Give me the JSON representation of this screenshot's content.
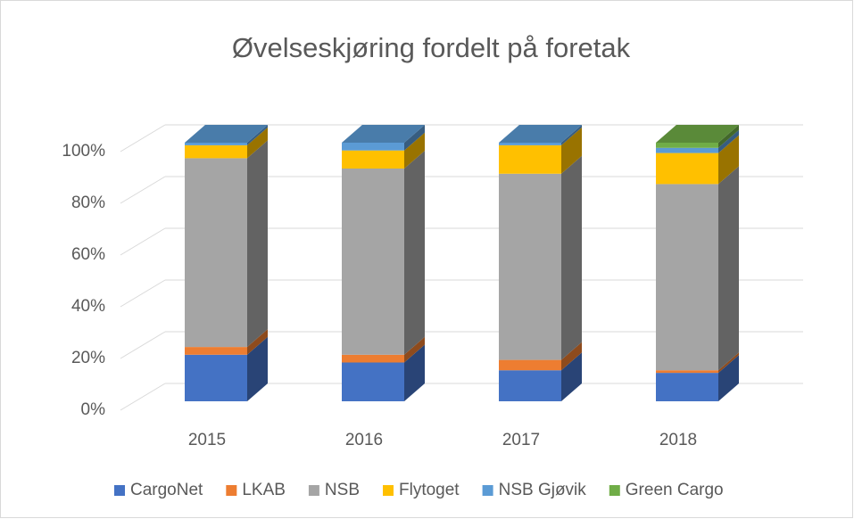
{
  "chart_data": {
    "type": "bar3d_stacked",
    "title": "Øvelseskjøring fordelt på foretak",
    "categories": [
      "2015",
      "2016",
      "2017",
      "2018"
    ],
    "series": [
      {
        "name": "CargoNet",
        "color": "#4472c4",
        "values": [
          18,
          15,
          12,
          11
        ]
      },
      {
        "name": "LKAB",
        "color": "#ed7d31",
        "values": [
          3,
          3,
          4,
          1
        ]
      },
      {
        "name": "NSB",
        "color": "#a5a5a5",
        "values": [
          73,
          72,
          72,
          72
        ]
      },
      {
        "name": "Flytoget",
        "color": "#ffc000",
        "values": [
          5,
          7,
          11,
          12
        ]
      },
      {
        "name": "NSB Gjøvik",
        "color": "#5b9bd5",
        "values": [
          1,
          3,
          1,
          2
        ]
      },
      {
        "name": "Green Cargo",
        "color": "#70ad47",
        "values": [
          0,
          0,
          0,
          2
        ]
      }
    ],
    "ylim": [
      0,
      100
    ],
    "yticks": [
      {
        "value": 0,
        "label": "0%"
      },
      {
        "value": 20,
        "label": "20%"
      },
      {
        "value": 40,
        "label": "40%"
      },
      {
        "value": 60,
        "label": "60%"
      },
      {
        "value": 80,
        "label": "80%"
      },
      {
        "value": 100,
        "label": "100%"
      }
    ],
    "grid": true,
    "legend": "bottom"
  }
}
